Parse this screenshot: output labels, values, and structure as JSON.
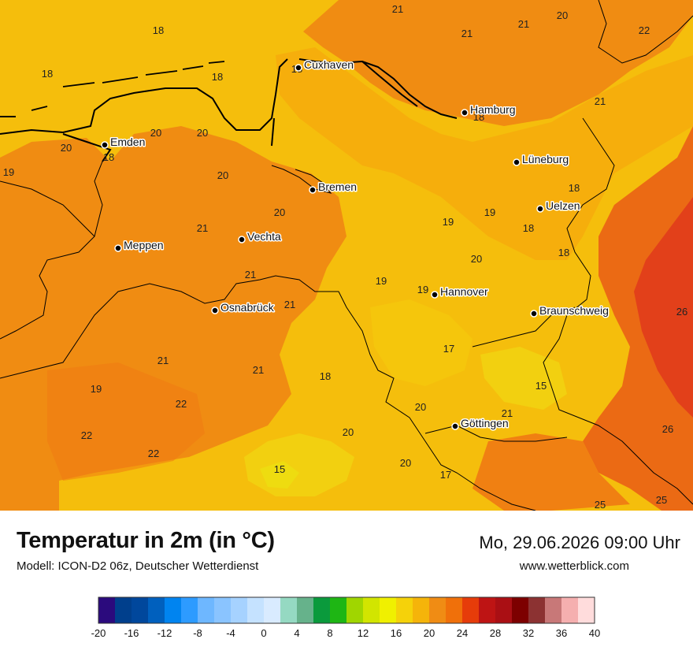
{
  "footer": {
    "title": "Temperatur in 2m (in °C)",
    "model": "Modell: ICON-D2 06z, Deutscher Wetterdienst",
    "datetime": "Mo, 29.06.2026 09:00 Uhr",
    "site": "www.wetterblick.com"
  },
  "cities": [
    {
      "name": "Cuxhaven"
    },
    {
      "name": "Hamburg"
    },
    {
      "name": "Emden"
    },
    {
      "name": "Lüneburg"
    },
    {
      "name": "Bremen"
    },
    {
      "name": "Uelzen"
    },
    {
      "name": "Vechta"
    },
    {
      "name": "Meppen"
    },
    {
      "name": "Hannover"
    },
    {
      "name": "Osnabrück"
    },
    {
      "name": "Braunschweig"
    },
    {
      "name": "Göttingen"
    }
  ],
  "temperature_labels": [
    "21",
    "20",
    "21",
    "21",
    "22",
    "18",
    "18",
    "18",
    "18",
    "21",
    "20",
    "20",
    "18",
    "20",
    "18",
    "19",
    "20",
    "18",
    "20",
    "19",
    "21",
    "19",
    "18",
    "21",
    "20",
    "19",
    "18",
    "19",
    "21",
    "17",
    "26",
    "21",
    "21",
    "18",
    "15",
    "19",
    "22",
    "20",
    "20",
    "21",
    "26",
    "22",
    "22",
    "20",
    "15",
    "17",
    "25",
    "25"
  ],
  "colors": {
    "t16": "#e8dc00",
    "t18": "#f5c00a",
    "t20": "#f5a50a",
    "t22": "#f08410",
    "t24": "#eb6414",
    "t26": "#e63c14",
    "coast": "#000000"
  },
  "legend": {
    "ticks": [
      "-20",
      "-16",
      "-12",
      "-8",
      "-4",
      "0",
      "4",
      "8",
      "12",
      "16",
      "20",
      "24",
      "28",
      "32",
      "36",
      "40"
    ],
    "colors": [
      "#2b0a7d",
      "#003f8c",
      "#00479c",
      "#0060be",
      "#0084f0",
      "#2d9bff",
      "#6eb7ff",
      "#8ac4ff",
      "#a6d2ff",
      "#c5e2ff",
      "#d9ebff",
      "#95d9c2",
      "#66b28b",
      "#0a9a3c",
      "#1eb614",
      "#a0d600",
      "#d2e500",
      "#f0f000",
      "#f5d20a",
      "#f5b40a",
      "#f08c14",
      "#f0700a",
      "#e63c0a",
      "#be1414",
      "#aa0f14",
      "#7d0000",
      "#8c3232",
      "#c87878",
      "#f5afaf",
      "#ffdcdc"
    ]
  }
}
